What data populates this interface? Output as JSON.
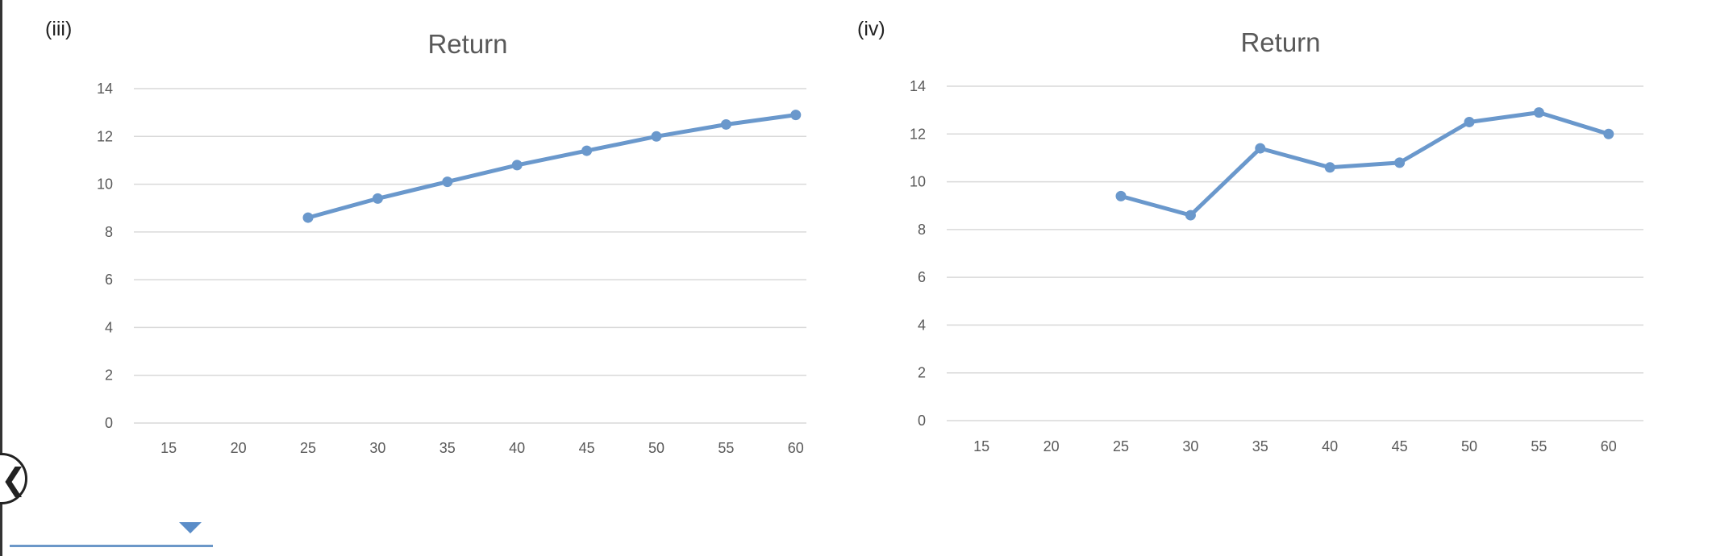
{
  "colors": {
    "series": "#6a98cc"
  },
  "chart_data": [
    {
      "panel_label": "(iii)",
      "type": "line",
      "title": "Return",
      "x": [
        15,
        20,
        25,
        30,
        35,
        40,
        45,
        50,
        55,
        60
      ],
      "ylim": [
        0,
        14
      ],
      "yticks": [
        0,
        2,
        4,
        6,
        8,
        10,
        12,
        14
      ],
      "grid": true,
      "series": [
        {
          "values": [
            null,
            null,
            8.6,
            9.4,
            10.1,
            10.8,
            11.4,
            12.0,
            12.5,
            12.9
          ]
        }
      ]
    },
    {
      "panel_label": "(iv)",
      "type": "line",
      "title": "Return",
      "x": [
        15,
        20,
        25,
        30,
        35,
        40,
        45,
        50,
        55,
        60
      ],
      "ylim": [
        0,
        14
      ],
      "yticks": [
        0,
        2,
        4,
        6,
        8,
        10,
        12,
        14
      ],
      "grid": true,
      "series": [
        {
          "values": [
            null,
            null,
            9.4,
            8.6,
            11.4,
            10.6,
            10.8,
            12.5,
            12.9,
            12.0
          ]
        }
      ]
    }
  ],
  "controls": {
    "prev_glyph": "❮"
  }
}
